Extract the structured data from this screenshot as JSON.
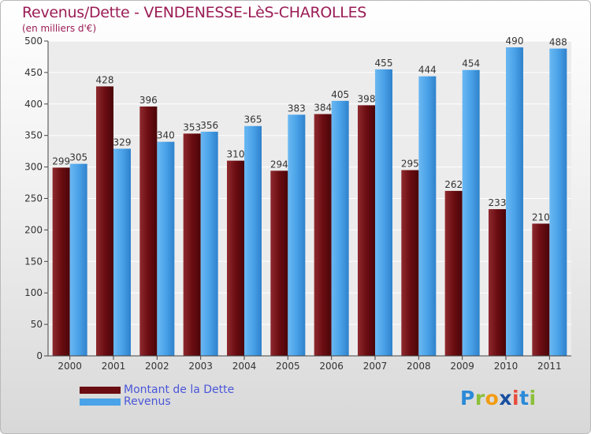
{
  "header": {
    "title": "Revenus/Dette - VENDENESSE-LèS-CHAROLLES",
    "subtitle": "(en milliers d'€)"
  },
  "legend": {
    "items": [
      {
        "label": "Montant de la Dette",
        "color": "#6b0d12"
      },
      {
        "label": "Revenus",
        "color": "#4aa2e8"
      }
    ]
  },
  "logo": {
    "text": "Proxiti",
    "letters": [
      "P",
      "r",
      "o",
      "x",
      "i",
      "t",
      "i"
    ],
    "colors": [
      "#2a8ad8",
      "#8bbf3a",
      "#f39c12",
      "#1a4fa0",
      "#e74c3c",
      "#2a8ad8",
      "#8bbf3a"
    ]
  },
  "chart_data": {
    "type": "bar",
    "title": "Revenus/Dette - VENDENESSE-LèS-CHAROLLES",
    "subtitle": "(en milliers d'€)",
    "categories": [
      "2000",
      "2001",
      "2002",
      "2003",
      "2004",
      "2005",
      "2006",
      "2007",
      "2008",
      "2009",
      "2010",
      "2011"
    ],
    "series": [
      {
        "name": "Montant de la Dette",
        "values": [
          299,
          428,
          396,
          353,
          310,
          294,
          384,
          398,
          295,
          262,
          233,
          210
        ],
        "color": "#6b0d12"
      },
      {
        "name": "Revenus",
        "values": [
          305,
          329,
          340,
          356,
          365,
          383,
          405,
          455,
          444,
          454,
          490,
          488
        ],
        "color": "#4aa2e8"
      }
    ],
    "yticks": [
      0,
      50,
      100,
      150,
      200,
      250,
      300,
      350,
      400,
      450,
      500
    ],
    "ylim": [
      0,
      500
    ],
    "grid": true,
    "legend_position": "bottom-left"
  }
}
